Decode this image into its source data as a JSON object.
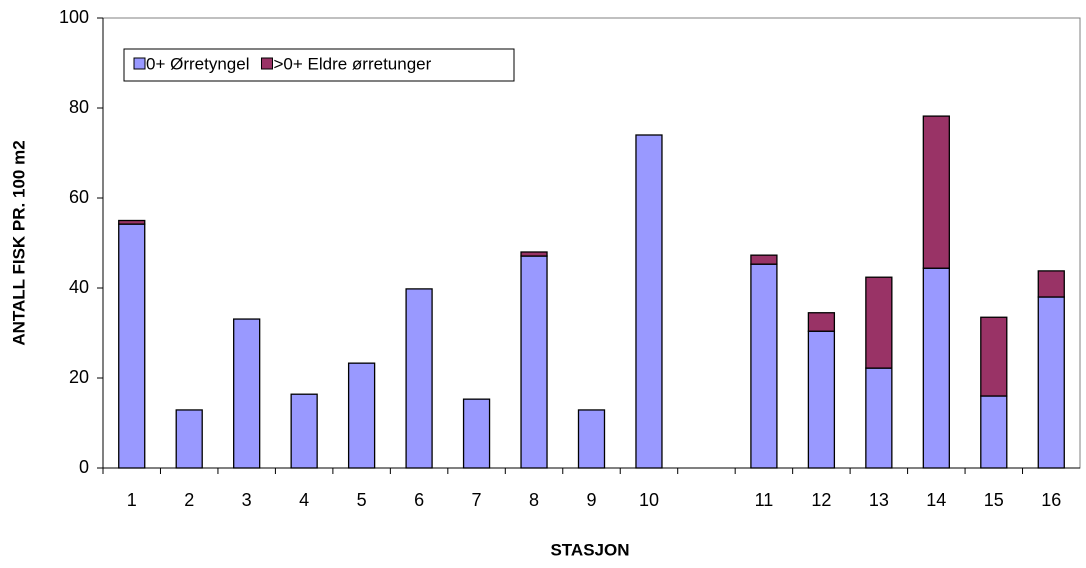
{
  "chart_data": {
    "type": "stacked_bar",
    "x_label": "STASJON",
    "y_label": "ANTALL FISK PR. 100 m2",
    "categories": [
      "1",
      "2",
      "3",
      "4",
      "5",
      "6",
      "7",
      "8",
      "9",
      "10",
      null,
      "11",
      "12",
      "13",
      "14",
      "15",
      "16"
    ],
    "series": [
      {
        "name": "0+ Ørretyngel",
        "color": "#9999ff",
        "values": [
          54.2,
          12.9,
          33.1,
          16.4,
          23.3,
          39.8,
          15.3,
          47.1,
          12.9,
          74.0,
          null,
          45.3,
          30.4,
          22.2,
          44.4,
          16.0,
          38.0
        ]
      },
      {
        "name": ">0+ Eldre ørretunger",
        "color": "#993366",
        "values": [
          0.8,
          0,
          0,
          0,
          0,
          0,
          0,
          0.9,
          0,
          0,
          null,
          2.0,
          4.1,
          20.2,
          33.8,
          17.5,
          5.8
        ]
      }
    ],
    "ylim": [
      0,
      100
    ],
    "yticks": [
      0,
      20,
      40,
      60,
      80,
      100
    ],
    "grid": false,
    "legend": "top-left"
  }
}
